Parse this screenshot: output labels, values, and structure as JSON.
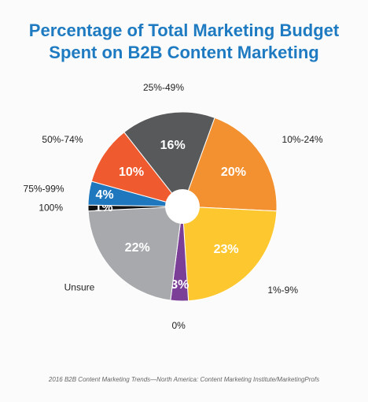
{
  "chart_data": {
    "type": "pie",
    "title": "Percentage of Total Marketing Budget",
    "subtitle": "Spent on B2B Content Marketing",
    "categories": [
      "10%-24%",
      "1%-9%",
      "0%",
      "Unsure",
      "100%",
      "75%-99%",
      "50%-74%",
      "25%-49%"
    ],
    "values": [
      20,
      23,
      3,
      22,
      1,
      4,
      10,
      16
    ],
    "value_labels": [
      "20%",
      "23%",
      "3%",
      "22%",
      "1%",
      "4%",
      "10%",
      "16%"
    ],
    "colors": [
      "#f39130",
      "#fdc82f",
      "#7b3f98",
      "#a7a9ac",
      "#111111",
      "#1f77bd",
      "#ef5a2f",
      "#58595b"
    ],
    "source": "2016 B2B Content Marketing Trends—North America: Content Marketing Institute/MarketingProfs"
  }
}
